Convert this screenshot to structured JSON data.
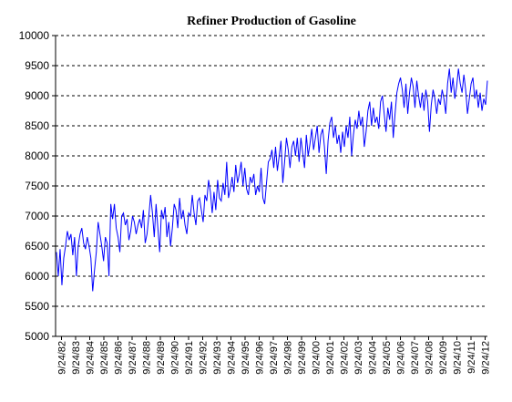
{
  "chart_data": {
    "type": "line",
    "title": "Refiner Production of Gasoline",
    "xlabel": "",
    "ylabel": "",
    "ylim": [
      5000,
      10000
    ],
    "yticks": [
      5000,
      5500,
      6000,
      6500,
      7000,
      7500,
      8000,
      8500,
      9000,
      9500,
      10000
    ],
    "xticks": [
      "9/24/82",
      "9/24/83",
      "9/24/84",
      "9/24/85",
      "9/24/86",
      "9/24/87",
      "9/24/88",
      "9/24/89",
      "9/24/90",
      "9/24/91",
      "9/24/92",
      "9/24/93",
      "9/24/94",
      "9/24/95",
      "9/24/96",
      "9/24/97",
      "9/24/98",
      "9/24/99",
      "9/24/00",
      "9/24/01",
      "9/24/02",
      "9/24/03",
      "9/24/04",
      "9/24/05",
      "9/24/06",
      "9/24/07",
      "9/24/08",
      "9/24/09",
      "9/24/10",
      "9/24/11",
      "9/24/12"
    ],
    "grid": true,
    "legend": "none",
    "series_color": "#0000ff",
    "series": [
      {
        "x_start": "1982-09-24",
        "x_step": "month",
        "values": [
          6400,
          6000,
          6450,
          5850,
          6300,
          6500,
          6750,
          6600,
          6700,
          6350,
          6650,
          6000,
          6500,
          6700,
          6800,
          6550,
          6450,
          6650,
          6500,
          6300,
          5750,
          6100,
          6400,
          6900,
          6700,
          6500,
          6250,
          6650,
          6550,
          6000,
          7200,
          6950,
          7200,
          6800,
          6650,
          6400,
          7000,
          7050,
          6850,
          6950,
          6600,
          6750,
          7000,
          6900,
          6700,
          6850,
          6950,
          6800,
          7100,
          6550,
          6700,
          7000,
          7350,
          7050,
          6650,
          7200,
          6800,
          6400,
          7100,
          6950,
          7150,
          6650,
          6900,
          6500,
          6800,
          7200,
          7100,
          6800,
          7300,
          6950,
          7100,
          6850,
          6700,
          7050,
          7000,
          7350,
          7050,
          6850,
          7250,
          7300,
          7100,
          6900,
          7350,
          7250,
          7600,
          7400,
          7050,
          7400,
          7100,
          7600,
          7300,
          7250,
          7550,
          7350,
          7900,
          7300,
          7450,
          7650,
          7400,
          7850,
          7550,
          7700,
          7900,
          7500,
          7800,
          7450,
          7350,
          7650,
          7550,
          7700,
          7350,
          7500,
          7400,
          7800,
          7300,
          7200,
          7550,
          7900,
          7950,
          8100,
          7800,
          8150,
          7750,
          8000,
          8250,
          7550,
          7900,
          8300,
          8100,
          7800,
          8150,
          8250,
          8000,
          8300,
          7900,
          8300,
          8050,
          7800,
          8350,
          8000,
          8200,
          8450,
          8100,
          8300,
          8500,
          8050,
          8350,
          8450,
          8150,
          7700,
          8250,
          8550,
          8650,
          8300,
          8500,
          8200,
          8350,
          8050,
          8400,
          8150,
          8500,
          8300,
          8650,
          8000,
          8350,
          8600,
          8450,
          8750,
          8500,
          8650,
          8150,
          8400,
          8750,
          8900,
          8500,
          8800,
          8550,
          8650,
          8450,
          8900,
          9000,
          8700,
          8400,
          8800,
          8600,
          8900,
          8300,
          8700,
          9050,
          9200,
          9300,
          9100,
          8800,
          9200,
          8700,
          9050,
          9300,
          9150,
          8800,
          9250,
          9000,
          8800,
          9050,
          8750,
          9100,
          8900,
          8400,
          8850,
          9100,
          8950,
          8700,
          8950,
          8850,
          9100,
          8950,
          8700,
          9200,
          9450,
          9050,
          9300,
          8950,
          9150,
          9450,
          9200,
          9050,
          9350,
          9100,
          8700,
          8950,
          9200,
          9300,
          8950,
          9100,
          8800,
          9050,
          8750,
          8950,
          8850,
          9250
        ]
      }
    ]
  }
}
